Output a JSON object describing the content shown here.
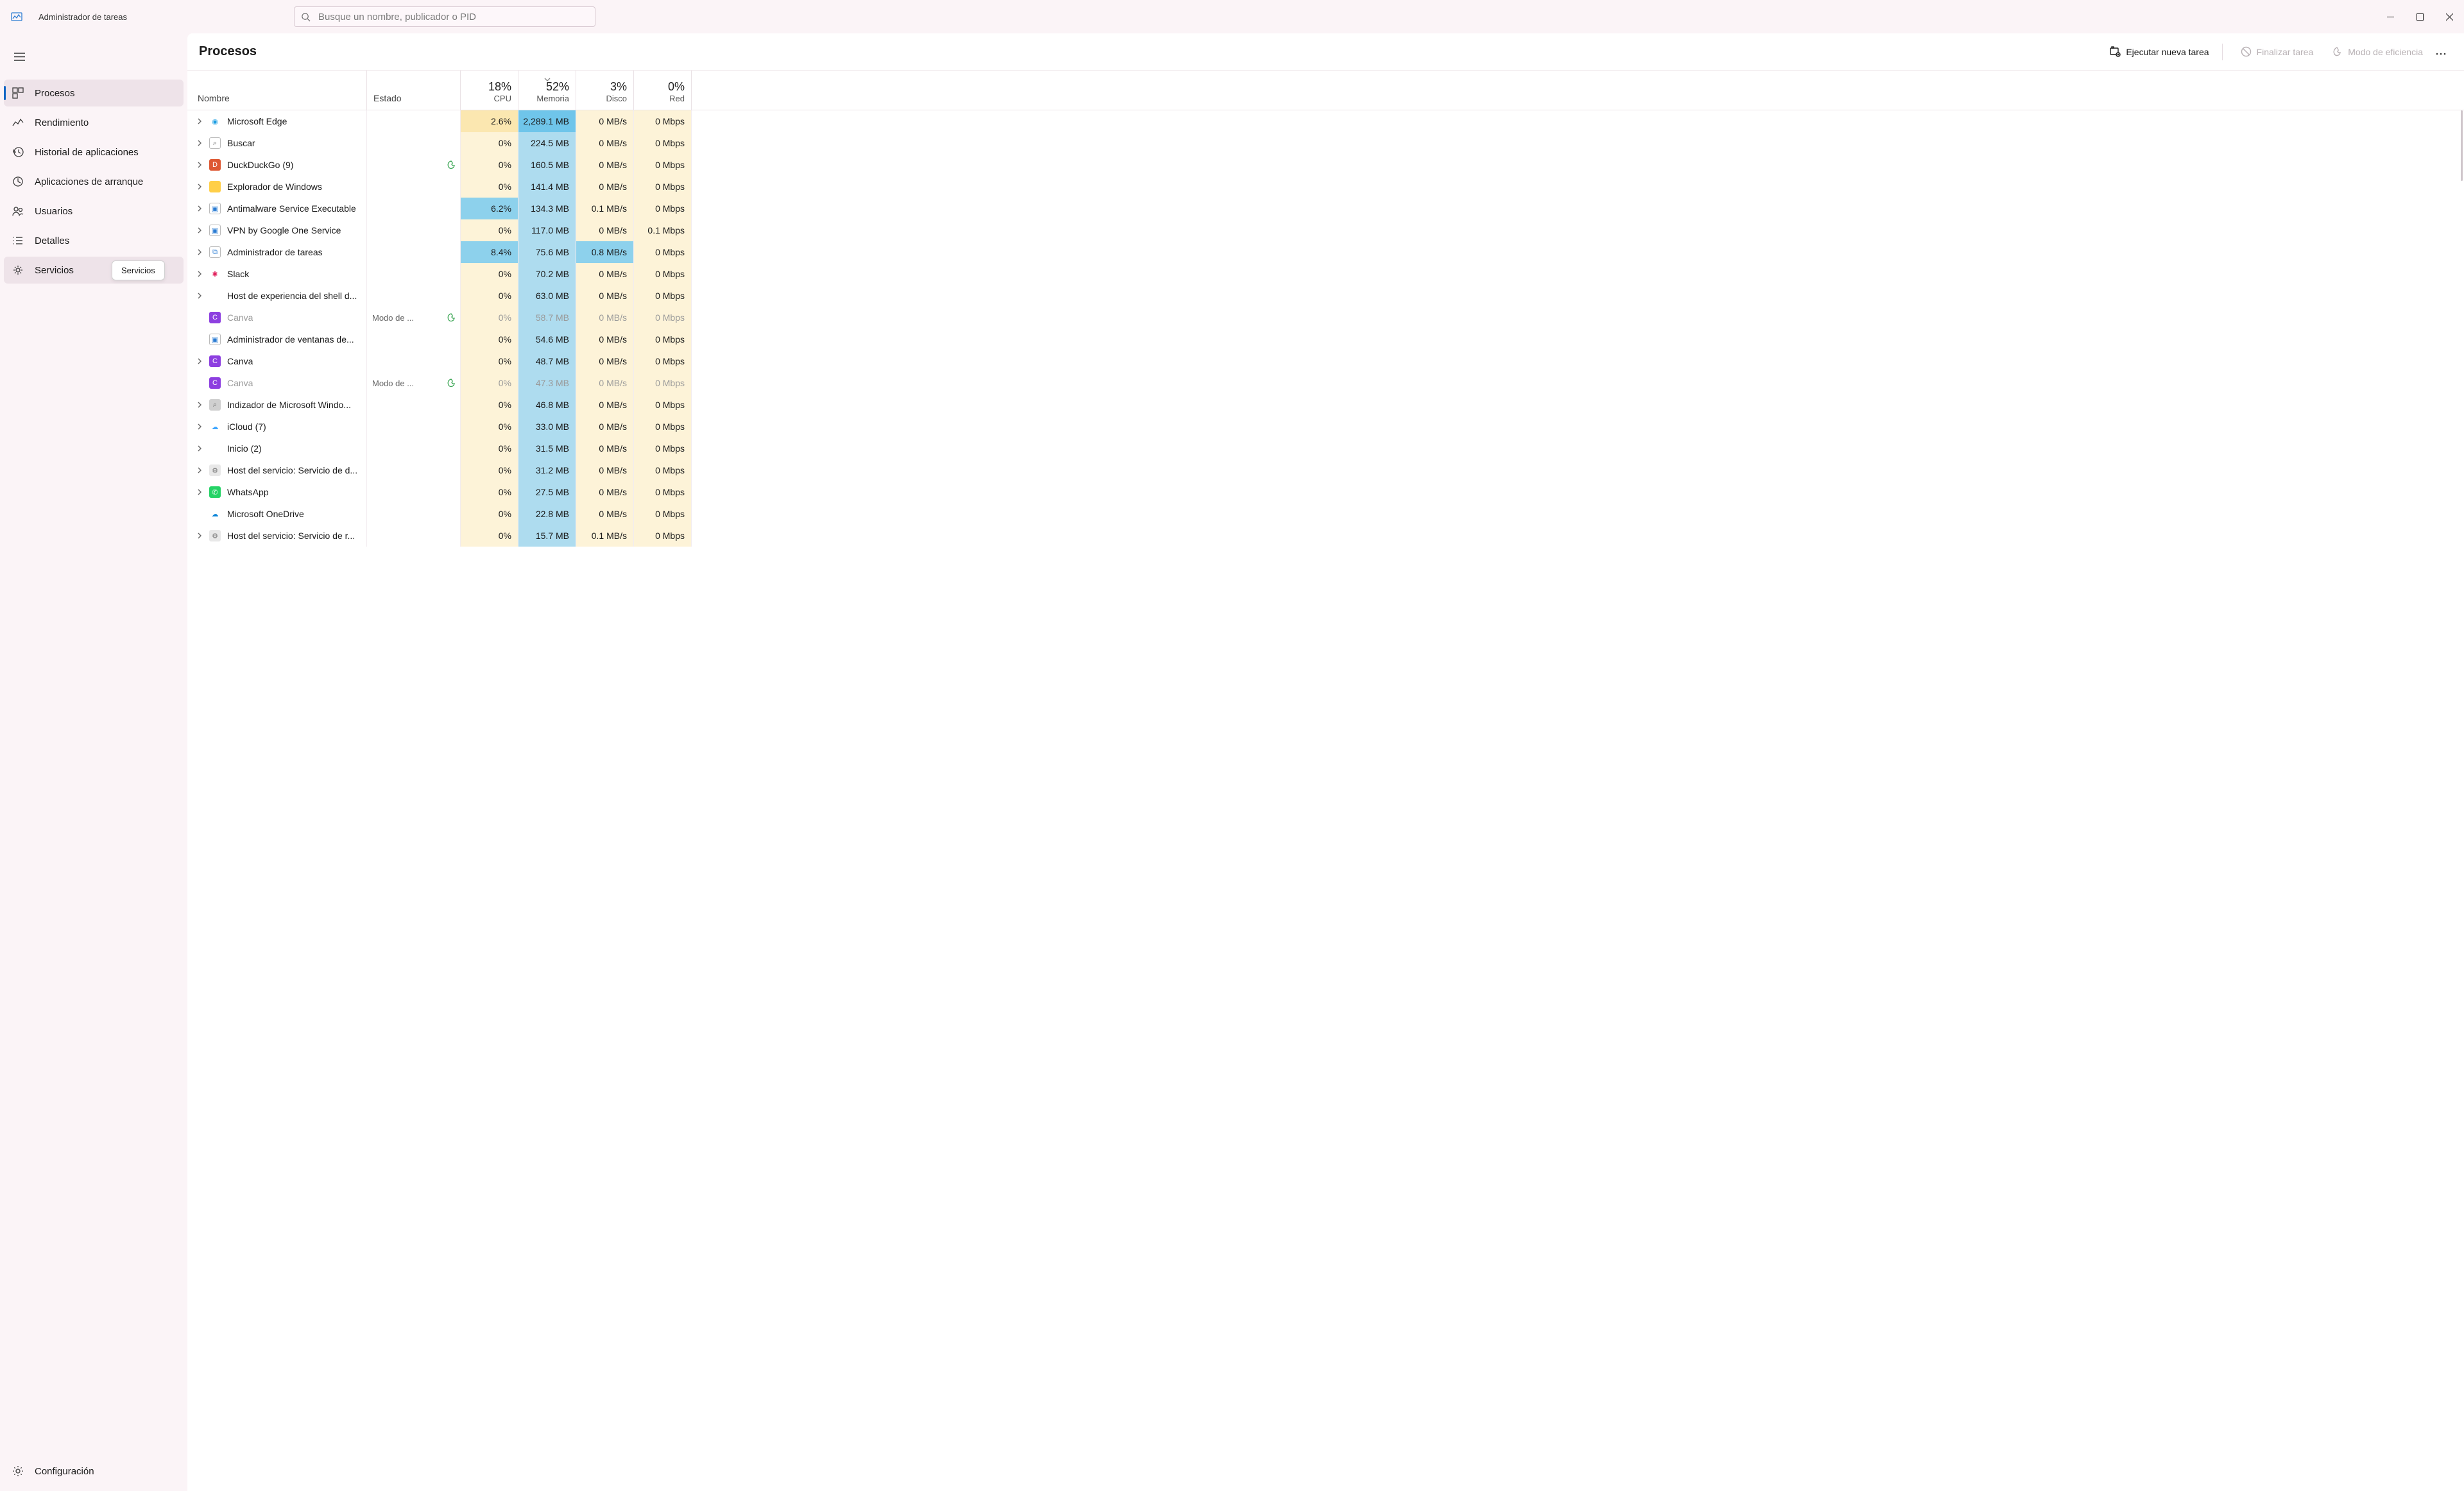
{
  "app": {
    "title": "Administrador de tareas"
  },
  "search": {
    "placeholder": "Busque un nombre, publicador o PID"
  },
  "sidebar": {
    "items": [
      {
        "label": "Procesos"
      },
      {
        "label": "Rendimiento"
      },
      {
        "label": "Historial de aplicaciones"
      },
      {
        "label": "Aplicaciones de arranque"
      },
      {
        "label": "Usuarios"
      },
      {
        "label": "Detalles"
      },
      {
        "label": "Servicios"
      }
    ],
    "settings_label": "Configuración",
    "tooltip": "Servicios"
  },
  "header": {
    "title": "Procesos",
    "run_task": "Ejecutar nueva tarea",
    "end_task": "Finalizar tarea",
    "efficiency": "Modo de eficiencia"
  },
  "columns": {
    "name": "Nombre",
    "state": "Estado",
    "cpu": {
      "pct": "18%",
      "label": "CPU"
    },
    "mem": {
      "pct": "52%",
      "label": "Memoria"
    },
    "disk": {
      "pct": "3%",
      "label": "Disco"
    },
    "net": {
      "pct": "0%",
      "label": "Red"
    }
  },
  "heat": {
    "base": "#fdf3d8",
    "mid": "#fbe7b0",
    "hot1": "#6fc5ea",
    "hot2": "#8dd1ec",
    "hot3": "#aedcef",
    "disk_hot": "#8dd1ec"
  },
  "rows": [
    {
      "name": "Microsoft Edge",
      "icon": "edge",
      "expandable": true,
      "cpu": "2.6%",
      "cpu_heat": "mid",
      "mem": "2,289.1 MB",
      "mem_heat": "hot1",
      "disk": "0 MB/s",
      "net": "0 Mbps"
    },
    {
      "name": "Buscar",
      "icon": "search",
      "expandable": true,
      "cpu": "0%",
      "mem": "224.5 MB",
      "mem_heat": "hot3",
      "disk": "0 MB/s",
      "net": "0 Mbps"
    },
    {
      "name": "DuckDuckGo (9)",
      "icon": "ddg",
      "expandable": true,
      "leaf": true,
      "cpu": "0%",
      "mem": "160.5 MB",
      "mem_heat": "hot3",
      "disk": "0 MB/s",
      "net": "0 Mbps"
    },
    {
      "name": "Explorador de Windows",
      "icon": "folder",
      "expandable": true,
      "cpu": "0%",
      "mem": "141.4 MB",
      "mem_heat": "hot3",
      "disk": "0 MB/s",
      "net": "0 Mbps"
    },
    {
      "name": "Antimalware Service Executable",
      "icon": "defender",
      "expandable": true,
      "cpu": "6.2%",
      "cpu_heat": "hot2",
      "mem": "134.3 MB",
      "mem_heat": "hot3",
      "disk": "0.1 MB/s",
      "net": "0 Mbps"
    },
    {
      "name": "VPN by Google One Service",
      "icon": "defender",
      "expandable": true,
      "cpu": "0%",
      "mem": "117.0 MB",
      "mem_heat": "hot3",
      "disk": "0 MB/s",
      "net": "0.1 Mbps"
    },
    {
      "name": "Administrador de tareas",
      "icon": "taskmgr",
      "expandable": true,
      "cpu": "8.4%",
      "cpu_heat": "hot2",
      "mem": "75.6 MB",
      "mem_heat": "hot3",
      "disk": "0.8 MB/s",
      "disk_heat": "disk_hot",
      "net": "0 Mbps"
    },
    {
      "name": "Slack",
      "icon": "slack",
      "expandable": true,
      "cpu": "0%",
      "mem": "70.2 MB",
      "mem_heat": "hot3",
      "disk": "0 MB/s",
      "net": "0 Mbps"
    },
    {
      "name": "Host de experiencia del shell d...",
      "icon": "none",
      "expandable": true,
      "cpu": "0%",
      "mem": "63.0 MB",
      "mem_heat": "hot3",
      "disk": "0 MB/s",
      "net": "0 Mbps"
    },
    {
      "name": "Canva",
      "icon": "canva",
      "efficiency": true,
      "state": "Modo de ...",
      "leaf": true,
      "cpu": "0%",
      "mem": "58.7 MB",
      "mem_heat": "hot3",
      "disk": "0 MB/s",
      "net": "0 Mbps"
    },
    {
      "name": "Administrador de ventanas de...",
      "icon": "defender",
      "cpu": "0%",
      "mem": "54.6 MB",
      "mem_heat": "hot3",
      "disk": "0 MB/s",
      "net": "0 Mbps"
    },
    {
      "name": "Canva",
      "icon": "canva",
      "expandable": true,
      "cpu": "0%",
      "mem": "48.7 MB",
      "mem_heat": "hot3",
      "disk": "0 MB/s",
      "net": "0 Mbps"
    },
    {
      "name": "Canva",
      "icon": "canva",
      "efficiency": true,
      "state": "Modo de ...",
      "leaf": true,
      "cpu": "0%",
      "mem": "47.3 MB",
      "mem_heat": "hot3",
      "disk": "0 MB/s",
      "net": "0 Mbps"
    },
    {
      "name": "Indizador de Microsoft Windo...",
      "icon": "indexer",
      "expandable": true,
      "cpu": "0%",
      "mem": "46.8 MB",
      "mem_heat": "hot3",
      "disk": "0 MB/s",
      "net": "0 Mbps"
    },
    {
      "name": "iCloud (7)",
      "icon": "icloud",
      "expandable": true,
      "cpu": "0%",
      "mem": "33.0 MB",
      "mem_heat": "hot3",
      "disk": "0 MB/s",
      "net": "0 Mbps"
    },
    {
      "name": "Inicio (2)",
      "icon": "none",
      "expandable": true,
      "cpu": "0%",
      "mem": "31.5 MB",
      "mem_heat": "hot3",
      "disk": "0 MB/s",
      "net": "0 Mbps"
    },
    {
      "name": "Host del servicio: Servicio de d...",
      "icon": "gear",
      "expandable": true,
      "cpu": "0%",
      "mem": "31.2 MB",
      "mem_heat": "hot3",
      "disk": "0 MB/s",
      "net": "0 Mbps"
    },
    {
      "name": "WhatsApp",
      "icon": "whatsapp",
      "expandable": true,
      "cpu": "0%",
      "mem": "27.5 MB",
      "mem_heat": "hot3",
      "disk": "0 MB/s",
      "net": "0 Mbps"
    },
    {
      "name": "Microsoft OneDrive",
      "icon": "onedrive",
      "cpu": "0%",
      "mem": "22.8 MB",
      "mem_heat": "hot3",
      "disk": "0 MB/s",
      "net": "0 Mbps"
    },
    {
      "name": "Host del servicio: Servicio de r...",
      "icon": "gear",
      "expandable": true,
      "cpu": "0%",
      "mem": "15.7 MB",
      "mem_heat": "hot3",
      "disk": "0.1 MB/s",
      "net": "0 Mbps"
    }
  ],
  "icons": {
    "edge": {
      "bg": "#ffffff",
      "fg": "#1b9de2",
      "glyph": "◉"
    },
    "search": {
      "bg": "#ffffff",
      "fg": "#555555",
      "glyph": "⌕",
      "border": "#bbb"
    },
    "ddg": {
      "bg": "#de5833",
      "glyph": "D"
    },
    "folder": {
      "bg": "#ffcf48",
      "fg": "#b8860b",
      "glyph": ""
    },
    "defender": {
      "bg": "#ffffff",
      "fg": "#2b7cd3",
      "glyph": "▣",
      "border": "#bbb"
    },
    "taskmgr": {
      "bg": "#ffffff",
      "fg": "#2b7cd3",
      "glyph": "⧉",
      "border": "#bbb"
    },
    "slack": {
      "bg": "#ffffff",
      "fg": "#e01e5a",
      "glyph": "✱"
    },
    "canva": {
      "bg": "#8d3fe0",
      "glyph": "C"
    },
    "indexer": {
      "bg": "#d0d0d0",
      "fg": "#555",
      "glyph": "⌕"
    },
    "icloud": {
      "bg": "#ffffff",
      "fg": "#3ea6ff",
      "glyph": "☁"
    },
    "gear": {
      "bg": "#e8e8e8",
      "fg": "#777",
      "glyph": "⚙"
    },
    "whatsapp": {
      "bg": "#25d366",
      "glyph": "✆"
    },
    "onedrive": {
      "bg": "#ffffff",
      "fg": "#0a84d8",
      "glyph": "☁"
    },
    "none": {
      "bg": "transparent",
      "glyph": ""
    }
  }
}
